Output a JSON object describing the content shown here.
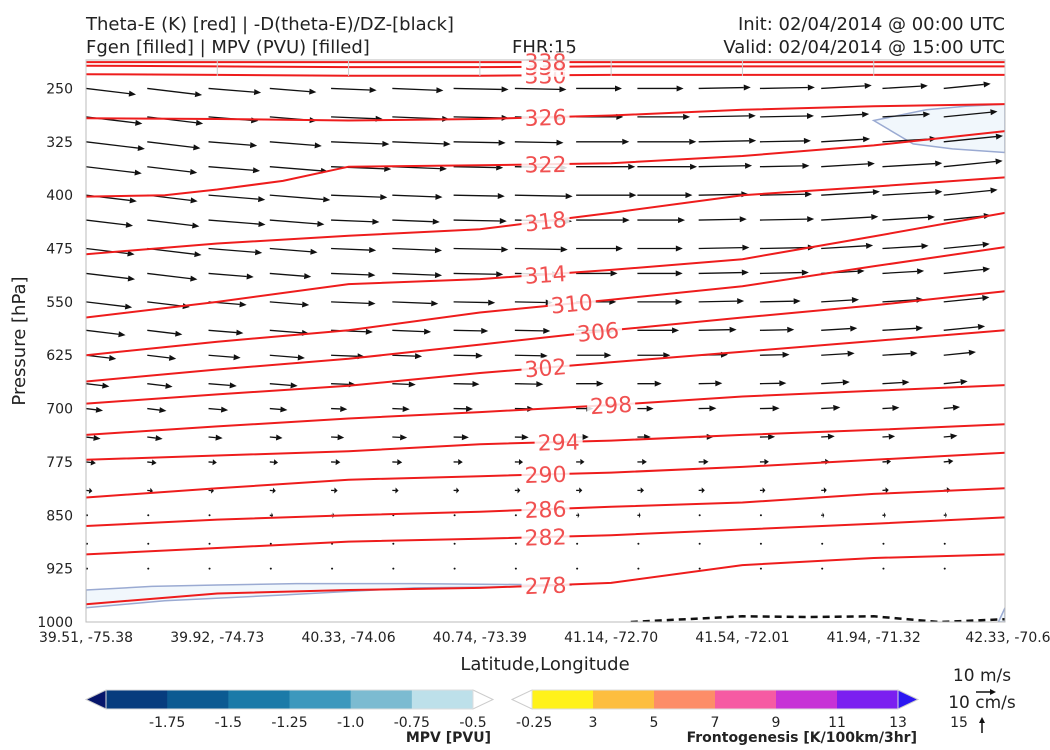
{
  "header": {
    "title_line1": "Theta-E (K) [red] | -D(theta-E)/DZ-[black]",
    "title_line2": "Fgen [filled] | MPV (PVU) [filled]",
    "fhr": "FHR:15",
    "init": "Init: 02/04/2014 @ 00:00 UTC",
    "valid": "Valid: 02/04/2014 @ 15:00 UTC"
  },
  "chart_data": {
    "type": "line",
    "xlabel": "Latitude,Longitude",
    "ylabel": "Pressure [hPa]",
    "x_ticks": [
      "39.51, -75.38",
      "39.92, -74.73",
      "40.33, -74.06",
      "40.74, -73.39",
      "41.14, -72.70",
      "41.54, -72.01",
      "41.94, -71.32",
      "42.33, -70.6"
    ],
    "y_ticks": [
      250,
      325,
      400,
      475,
      550,
      625,
      700,
      775,
      850,
      925,
      1000
    ],
    "ylim": [
      1000,
      210
    ],
    "xlim": [
      0,
      7
    ],
    "theta_e_color": "#ee1c1c",
    "theta_e_contours": [
      {
        "label": "278",
        "x": [
          0,
          1,
          2,
          3,
          4,
          5,
          6,
          7
        ],
        "p": [
          975,
          960,
          955,
          952,
          945,
          920,
          910,
          905
        ]
      },
      {
        "label": "282",
        "x": [
          0,
          1,
          2,
          3,
          4,
          5,
          6,
          7
        ],
        "p": [
          905,
          896,
          887,
          883,
          878,
          870,
          862,
          853
        ]
      },
      {
        "label": "286",
        "x": [
          0,
          1,
          2,
          3,
          4,
          5,
          6,
          7
        ],
        "p": [
          865,
          856,
          850,
          845,
          838,
          832,
          820,
          812
        ]
      },
      {
        "label": "290",
        "x": [
          0,
          1,
          2,
          3,
          4,
          5,
          6,
          7
        ],
        "p": [
          825,
          812,
          800,
          795,
          790,
          782,
          772,
          762
        ]
      },
      {
        "label": "294",
        "x": [
          0,
          1,
          2,
          3,
          4,
          5,
          6,
          7
        ],
        "p": [
          772,
          766,
          760,
          750,
          745,
          737,
          730,
          722
        ]
      },
      {
        "label": "298",
        "x": [
          0,
          1,
          2,
          3,
          4,
          5,
          6,
          7
        ],
        "p": [
          737,
          725,
          714,
          705,
          695,
          683,
          675,
          667
        ]
      },
      {
        "label": "302",
        "x": [
          0,
          1,
          2,
          3,
          4,
          5,
          6,
          7
        ],
        "p": [
          693,
          680,
          668,
          650,
          635,
          620,
          605,
          590
        ]
      },
      {
        "label": "306",
        "x": [
          0,
          1,
          2,
          3,
          4,
          5,
          6,
          7
        ],
        "p": [
          662,
          645,
          630,
          610,
          590,
          572,
          555,
          535
        ]
      },
      {
        "label": "310",
        "x": [
          0,
          1,
          2,
          3,
          4,
          5,
          6,
          7
        ],
        "p": [
          625,
          606,
          590,
          565,
          547,
          528,
          500,
          473
        ]
      },
      {
        "label": "314",
        "x": [
          0,
          1,
          2,
          3,
          4,
          5,
          6,
          7
        ],
        "p": [
          572,
          550,
          525,
          518,
          505,
          490,
          458,
          425
        ]
      },
      {
        "label": "318",
        "x": [
          0,
          1,
          2,
          3,
          4,
          5,
          6,
          7
        ],
        "p": [
          483,
          468,
          457,
          448,
          425,
          400,
          388,
          375
        ]
      },
      {
        "label": "322",
        "x": [
          0,
          0.6,
          1,
          1.5,
          2,
          3,
          4,
          5,
          6,
          7
        ],
        "p": [
          402,
          400,
          392,
          380,
          360,
          358,
          355,
          345,
          330,
          310
        ]
      },
      {
        "label": "326",
        "x": [
          0,
          1,
          2,
          3,
          4,
          5,
          6,
          7
        ],
        "p": [
          292,
          293,
          295,
          293,
          288,
          280,
          275,
          272
        ]
      },
      {
        "label": "330",
        "x": [
          0,
          1,
          2,
          3,
          4,
          5,
          6,
          7
        ],
        "p": [
          230,
          231,
          232,
          232,
          231,
          231,
          231,
          231
        ]
      },
      {
        "label": "334",
        "x": [
          0,
          1,
          2,
          3,
          4,
          5,
          6,
          7
        ],
        "p": [
          218,
          219,
          220,
          220,
          219,
          219,
          219,
          219
        ]
      },
      {
        "label": "338",
        "x": [
          0,
          1,
          2,
          3,
          4,
          5,
          6,
          7
        ],
        "p": [
          213,
          213,
          213,
          213,
          213,
          213,
          213,
          213
        ]
      }
    ],
    "mpv_filled_regions": [
      {
        "x": [
          0,
          0.5,
          1,
          1.6,
          2.5,
          3.7,
          3.5,
          2.5,
          1.5,
          0.6,
          0
        ],
        "p": [
          955,
          950,
          948,
          946,
          946,
          948,
          950,
          952,
          962,
          970,
          980
        ]
      },
      {
        "x": [
          6.0,
          6.4,
          6.7,
          7.0,
          7.0,
          6.6,
          6.3,
          6.0
        ],
        "p": [
          295,
          280,
          275,
          272,
          340,
          335,
          328,
          295
        ]
      },
      {
        "x": [
          6.95,
          7.0,
          7.0,
          6.95
        ],
        "p": [
          1000,
          980,
          1000,
          1000
        ]
      }
    ],
    "mpv_fill": "#f1f7fc",
    "mpv_edge": "#9aaad2",
    "dashed_contour": {
      "x": [
        4.15,
        5,
        5.5,
        6,
        6.5,
        7
      ],
      "p": [
        1000,
        992,
        993,
        992,
        1000,
        996
      ]
    },
    "vectors": {
      "rows_p": [
        250,
        290,
        325,
        360,
        400,
        435,
        475,
        510,
        550,
        590,
        625,
        665,
        700,
        740,
        775,
        815,
        850,
        890,
        925
      ],
      "dx": [
        50,
        52,
        54,
        55,
        55,
        52,
        50,
        46,
        42,
        38,
        32,
        26,
        18,
        14,
        9,
        6,
        3,
        2,
        1
      ],
      "dy_by_col": [
        6,
        4,
        2,
        1,
        0,
        -1,
        -3,
        -5
      ],
      "per_row": 15
    },
    "mpv_colorbar": {
      "label": "MPV [PVU]",
      "ticks": [
        "-1.75",
        "-1.5",
        "-1.25",
        "-1.0",
        "-0.75",
        "-0.5",
        "-0.25"
      ],
      "colors": [
        "#07166b",
        "#073c7e",
        "#0c5a92",
        "#1b7aa8",
        "#3d98bd",
        "#7cbbd1",
        "#bde0ea",
        "#ffffff"
      ]
    },
    "fgen_colorbar": {
      "label": "Frontogenesis [K/100km/3hr]",
      "ticks": [
        "3",
        "5",
        "7",
        "9",
        "11",
        "13",
        "15"
      ],
      "colors": [
        "#ffffff",
        "#fff21a",
        "#fdbe3f",
        "#fd8d68",
        "#f65aa3",
        "#c732d6",
        "#7b1ff0",
        "#2c16f2"
      ]
    },
    "reference_vectors": {
      "horizontal": "10 m/s",
      "vertical": "10 cm/s"
    }
  }
}
